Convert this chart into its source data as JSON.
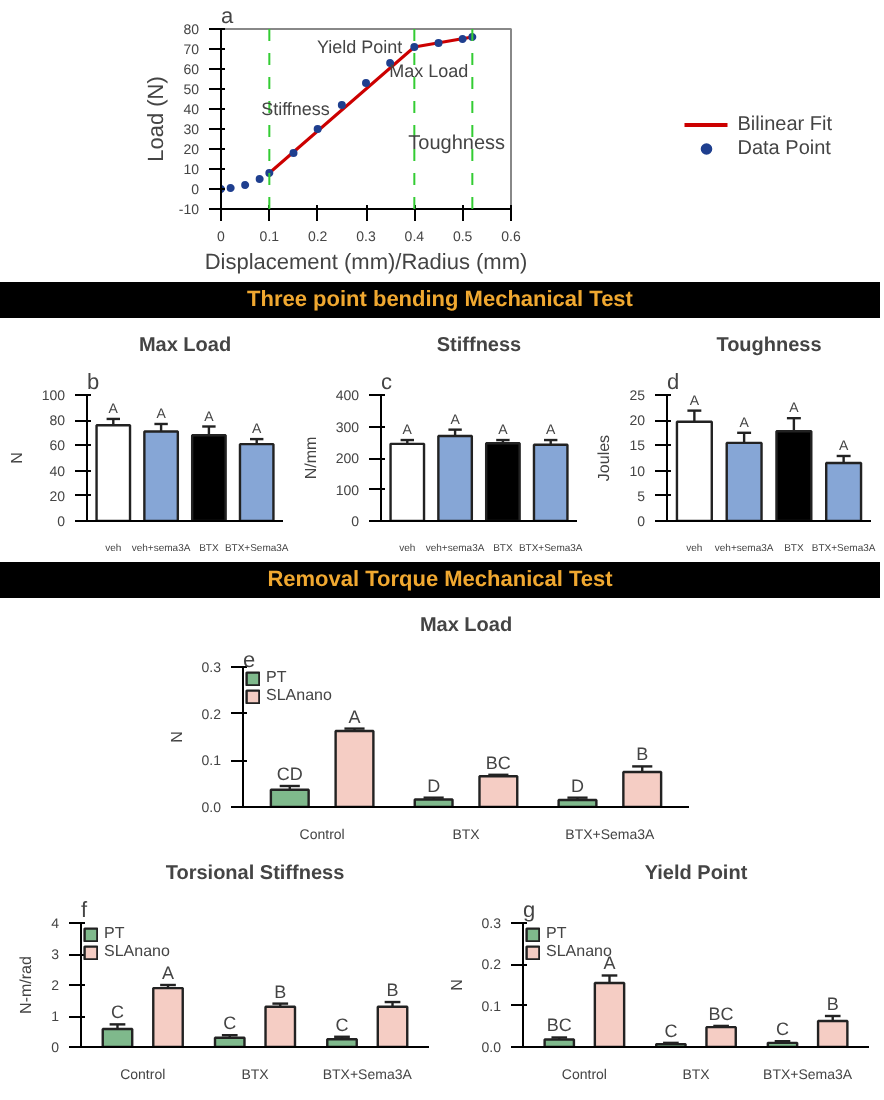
{
  "chart_data": [
    {
      "type": "line",
      "xlabel": "Displacement (mm)/Radius (mm)",
      "ylabel": "Load (N)",
      "annotations": [
        "a",
        {
          "text": "Yield Point",
          "x": 0.4,
          "y": 71
        },
        {
          "text": "Max Load",
          "x": 0.52,
          "y": 76
        },
        {
          "text": "Stiffness",
          "x": 0.25,
          "y": 40
        },
        "Toughness"
      ],
      "xlim": [
        0,
        0.6
      ],
      "ylim": [
        -10,
        80
      ],
      "xticks": [
        0,
        0.1,
        0.2,
        0.3,
        0.4,
        0.5,
        0.6
      ],
      "yticks": [
        -10,
        0,
        10,
        20,
        30,
        40,
        50,
        60,
        70,
        80
      ],
      "legend": "bottom right",
      "series": [
        {
          "name": "Bilinear Fit",
          "type": "line",
          "color": "#cc0000",
          "x": [
            0.1,
            0.4,
            0.52
          ],
          "values": [
            8,
            71,
            76
          ]
        },
        {
          "name": "Data Point",
          "type": "scatter",
          "color": "#1f3f8f",
          "x": [
            0,
            0.02,
            0.05,
            0.08,
            0.1,
            0.15,
            0.2,
            0.25,
            0.3,
            0.35,
            0.4,
            0.45,
            0.5,
            0.52
          ],
          "values": [
            0,
            0.5,
            2,
            5,
            8,
            18,
            30,
            42,
            53,
            63,
            71,
            73,
            75,
            76
          ]
        }
      ],
      "ref_lines": [
        {
          "axis": "x",
          "value": 0.1,
          "color": "#33cc33",
          "line_style": "dashed"
        },
        {
          "axis": "x",
          "value": 0.4,
          "color": "#33cc33",
          "line_style": "dashed"
        },
        {
          "axis": "x",
          "value": 0.52,
          "color": "#33cc33",
          "line_style": "dashed"
        }
      ]
    },
    {
      "type": "other",
      "title": "Three point bending Mechanical Test"
    },
    {
      "type": "bar",
      "title": "Max Load",
      "ylabel": "N",
      "annotations": [
        "b"
      ],
      "categories": [
        "veh",
        "veh+sema3A",
        "BTX",
        "BTX+Sema3A"
      ],
      "values": [
        76,
        71,
        68,
        61
      ],
      "colors": [
        "#ffffff",
        "#86a6d6",
        "#000000",
        "#86a6d6"
      ],
      "errors": [
        [
          76,
          81
        ],
        [
          71,
          77
        ],
        [
          68,
          75
        ],
        [
          61,
          65
        ]
      ],
      "value_labels": [
        "A",
        "A",
        "A",
        "A"
      ],
      "ylim": [
        0,
        100
      ],
      "yticks": [
        0,
        20,
        40,
        60,
        80,
        100
      ]
    },
    {
      "type": "bar",
      "title": "Stiffness",
      "ylabel": "N/mm",
      "annotations": [
        "c"
      ],
      "categories": [
        "veh",
        "veh+sema3A",
        "BTX",
        "BTX+Sema3A"
      ],
      "values": [
        245,
        270,
        247,
        242
      ],
      "colors": [
        "#ffffff",
        "#86a6d6",
        "#000000",
        "#86a6d6"
      ],
      "errors": [
        [
          245,
          257
        ],
        [
          270,
          290
        ],
        [
          247,
          257
        ],
        [
          242,
          257
        ]
      ],
      "value_labels": [
        "A",
        "A",
        "A",
        "A"
      ],
      "ylim": [
        0,
        400
      ],
      "yticks": [
        0,
        100,
        200,
        300,
        400
      ]
    },
    {
      "type": "bar",
      "title": "Toughness",
      "ylabel": "Joules",
      "annotations": [
        "d"
      ],
      "categories": [
        "veh",
        "veh+sema3A",
        "BTX",
        "BTX+Sema3A"
      ],
      "values": [
        19.7,
        15.5,
        17.8,
        11.5
      ],
      "colors": [
        "#ffffff",
        "#86a6d6",
        "#000000",
        "#86a6d6"
      ],
      "errors": [
        [
          19.7,
          21.9
        ],
        [
          15.5,
          17.5
        ],
        [
          17.8,
          20.4
        ],
        [
          11.5,
          12.9
        ]
      ],
      "value_labels": [
        "A",
        "A",
        "A",
        "A"
      ],
      "ylim": [
        0,
        25
      ],
      "yticks": [
        0,
        5,
        10,
        15,
        20,
        25
      ]
    },
    {
      "type": "other",
      "title": "Removal Torque Mechanical Test"
    },
    {
      "type": "bar",
      "title": "Max Load",
      "ylabel": "N",
      "annotations": [
        "e"
      ],
      "categories": [
        "Control",
        "BTX",
        "BTX+Sema3A"
      ],
      "legend": "top left",
      "ylim": [
        0,
        0.3
      ],
      "yticks": [
        {
          "value": 0,
          "label": "0.0"
        },
        0.1,
        0.2,
        0.3
      ],
      "series": [
        {
          "name": "PT",
          "color": "#7fb98c",
          "values": [
            0.037,
            0.016,
            0.015
          ],
          "errors": [
            [
              0.037,
              0.045
            ],
            [
              0.016,
              0.02
            ],
            [
              0.015,
              0.02
            ]
          ],
          "value_labels": [
            "CD",
            "D",
            "D"
          ]
        },
        {
          "name": "SLAnano",
          "color": "#f5cdc4",
          "values": [
            0.163,
            0.066,
            0.075
          ],
          "errors": [
            [
              0.163,
              0.168
            ],
            [
              0.066,
              0.069
            ],
            [
              0.075,
              0.087
            ]
          ],
          "value_labels": [
            "A",
            "BC",
            "B"
          ]
        }
      ]
    },
    {
      "type": "bar",
      "title": "Torsional Stiffness",
      "ylabel": "N-m/rad",
      "annotations": [
        "f"
      ],
      "categories": [
        "Control",
        "BTX",
        "BTX+Sema3A"
      ],
      "legend": "top left",
      "ylim": [
        0,
        4
      ],
      "yticks": [
        0,
        1,
        2,
        3,
        4
      ],
      "series": [
        {
          "name": "PT",
          "color": "#7fb98c",
          "values": [
            0.58,
            0.3,
            0.25
          ],
          "errors": [
            [
              0.58,
              0.73
            ],
            [
              0.3,
              0.38
            ],
            [
              0.25,
              0.33
            ]
          ],
          "value_labels": [
            "C",
            "C",
            "C"
          ]
        },
        {
          "name": "SLAnano",
          "color": "#f5cdc4",
          "values": [
            1.9,
            1.3,
            1.3
          ],
          "errors": [
            [
              1.9,
              2.0
            ],
            [
              1.3,
              1.4
            ],
            [
              1.3,
              1.45
            ]
          ],
          "value_labels": [
            "A",
            "B",
            "B"
          ]
        }
      ]
    },
    {
      "type": "bar",
      "title": "Yield Point",
      "ylabel": "N",
      "annotations": [
        "g"
      ],
      "categories": [
        "Control",
        "BTX",
        "BTX+Sema3A"
      ],
      "legend": "top left",
      "ylim": [
        0,
        0.3
      ],
      "yticks": [
        {
          "value": 0,
          "label": "0.0"
        },
        0.1,
        0.2,
        0.3
      ],
      "series": [
        {
          "name": "PT",
          "color": "#7fb98c",
          "values": [
            0.018,
            0.007,
            0.01
          ],
          "errors": [
            [
              0.018,
              0.023
            ],
            [
              0.007,
              0.01
            ],
            [
              0.01,
              0.014
            ]
          ],
          "value_labels": [
            "BC",
            "C",
            "C"
          ]
        },
        {
          "name": "SLAnano",
          "color": "#f5cdc4",
          "values": [
            0.155,
            0.048,
            0.063
          ],
          "errors": [
            [
              0.155,
              0.173
            ],
            [
              0.048,
              0.051
            ],
            [
              0.063,
              0.075
            ]
          ],
          "value_labels": [
            "A",
            "BC",
            "B"
          ]
        }
      ]
    }
  ]
}
